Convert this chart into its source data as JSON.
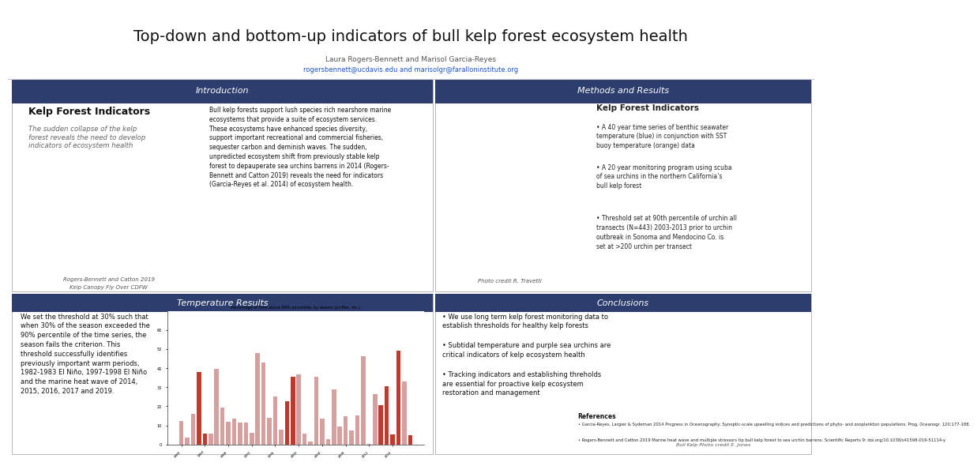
{
  "title": "Top-down and bottom-up indicators of bull kelp forest ecosystem health",
  "subtitle_line1": "Laura Rogers-Bennett and Marisol Garcia-Reyes",
  "subtitle_line2": "rogersbennett@ucdavis.edu and marisolgr@faralloninstitute.org",
  "background_color": "#ffffff",
  "section_header_color": "#2d3e6e",
  "section_header_text_color": "#ffffff",
  "border_color": "#aaaaaa",
  "sections": {
    "intro_title": "Introduction",
    "methods_title": "Methods and Results",
    "temp_title": "Temperature Results",
    "conclusions_title": "Conclusions"
  },
  "intro_heading": "Kelp Forest Indicators",
  "intro_subtext": "The sudden collapse of the kelp\nforest reveals the need to develop\nindicators of ecosystem health",
  "intro_body": "Bull kelp forests support lush species rich nearshore marine\necosystems that provide a suite of ecosystem services.\nThese ecosystems have enhanced species diversity,\nsupport important recreational and commercial fisheries,\nsequester carbon and deminish waves. The sudden,\nunpredicted ecosystem shift from previously stable kelp\nforest to depauperate sea urchins barrens in 2014 (Rogers-\nBennett and Catton 2019) reveals the need for indicators\n(Garcia-Reyes et al. 2014) of ecosystem health.",
  "intro_caption1": "Rogers-Bennett and Catton 2019",
  "intro_caption2": "Kelp Canopy Fly Over CDFW",
  "methods_heading": "Kelp Forest Indicators",
  "methods_bullets": [
    "A 40 year time series of benthic seawater\ntemperature (blue) in conjunction with SST\nbuoy temperature (orange) data",
    "A 20 year monitoring program using scuba\nof sea urchins in the northern California’s\nbull kelp forest",
    "Threshold set at 90th percentile of urchin all\ntransects (N=443) 2003-2013 prior to urchin\noutbreak in Sonoma and Mendocino Co. is\nset at >200 urchin per transect"
  ],
  "methods_photo_credit": "Photo credit R. Travetti",
  "temp_body": "We set the threshold at 30% such that\nwhen 30% of the season exceeded the\n90% percentile of the time series, the\nseason fails the criterion. This\nthreshold successfully identifies\npreviously important warm periods,\n1982-1983 El Niño, 1997-1998 El Niño\nand the marine heat wave of 2014,\n2015, 2016, 2017 and 2019.",
  "bar_title": "Percentage of time above 90th percentile, by season (Jul-Mar, etc.)",
  "conclusions_bullets": [
    "We use long term kelp forest monitoring data to\nestablish thresholds for healthy kelp forests",
    "Subtidal temperature and purple sea urchins are\ncritical indicators of kelp ecosystem health",
    "Tracking indicators and establishing threholds\nare essential for proactive kelp ecosystem\nrestoration and management"
  ],
  "conclusions_photo_credit": "Bull Kelp Photo credit E. Jones",
  "references_title": "References",
  "references": [
    "Garcia-Reyes, Largier & Sydeman 2014 Progress in Oceanography: Synoptic-scale upwelling indices and predictions of phyto- and zooplankton populations. Prog. Oceanogr. 120:177-188.",
    "Rogers-Bennett and Catton 2019 Marine heat wave and multiple stressors tip bull kelp forest to sea urchin barrens. Scientific Reports 9: doi.org/10.1038/s41598-019-51114-y"
  ],
  "header_logo_colors": [
    "#c8a830",
    "#777777",
    "#2a4480"
  ],
  "farallon_color": "#1a3060",
  "ucdavis_color": "#f5f5f5",
  "map_color": "#d4c9a8",
  "chart_color": "#e0eef8",
  "diver_color": "#2d5535",
  "kelp_photo_color": "#7a6520"
}
